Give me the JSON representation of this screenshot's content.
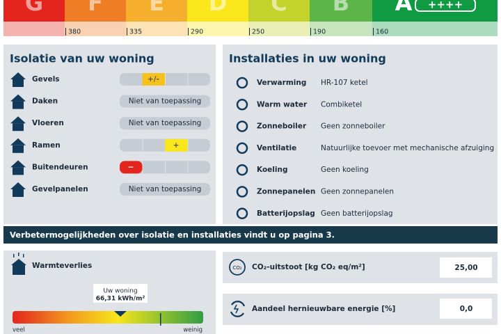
{
  "energy_label": {
    "classes": [
      {
        "letter": "G",
        "color": "#e3251d"
      },
      {
        "letter": "F",
        "color": "#ef7d26",
        "threshold": "380"
      },
      {
        "letter": "E",
        "color": "#f6ae2d",
        "threshold": "335"
      },
      {
        "letter": "D",
        "color": "#f9e61b",
        "threshold": "290"
      },
      {
        "letter": "C",
        "color": "#c3d32c",
        "threshold": "250"
      },
      {
        "letter": "B",
        "color": "#5db548",
        "threshold": "190"
      },
      {
        "letter": "A",
        "color": "#109a42",
        "threshold": "160",
        "badge": "++++"
      }
    ]
  },
  "insulation": {
    "title": "Isolatie van uw woning",
    "items": [
      {
        "label": "Gevels",
        "score": "+/-",
        "color": "#f6c21a"
      },
      {
        "label": "Daken",
        "status": "Niet van toepassing"
      },
      {
        "label": "Vloeren",
        "status": "Niet van toepassing"
      },
      {
        "label": "Ramen",
        "score": "+",
        "color": "#f9e61b"
      },
      {
        "label": "Buitendeuren",
        "score": "−",
        "color": "#e3251d"
      },
      {
        "label": "Gevelpanelen",
        "status": "Niet van toepassing"
      }
    ]
  },
  "installations": {
    "title": "Installaties in uw woning",
    "items": [
      {
        "label": "Verwarming",
        "value": "HR-107 ketel"
      },
      {
        "label": "Warm water",
        "value": "Combiketel"
      },
      {
        "label": "Zonneboiler",
        "value": "Geen zonneboiler"
      },
      {
        "label": "Ventilatie",
        "value": "Natuurlijke toevoer met mechanische afzuiging"
      },
      {
        "label": "Koeling",
        "value": "Geen koeling"
      },
      {
        "label": "Zonnepanelen",
        "value": "Geen zonnepanelen"
      },
      {
        "label": "Batterijopslag",
        "value": "Geen batterijopslag"
      }
    ]
  },
  "banner": "Verbetermogelijkheden over isolatie en installaties vindt u op pagina 3.",
  "heat_loss": {
    "title": "Warmteverlies",
    "callout_title": "Uw woning",
    "callout_value": "66,31 kWh/m²",
    "low": "veel",
    "high": "weinig"
  },
  "co2": {
    "label": "CO₂-uitstoot [kg CO₂ eq/m²]",
    "value": "25,00",
    "icon": "CO₂"
  },
  "renewable": {
    "label": "Aandeel hernieuwbare energie [%]",
    "value": "0,0"
  }
}
